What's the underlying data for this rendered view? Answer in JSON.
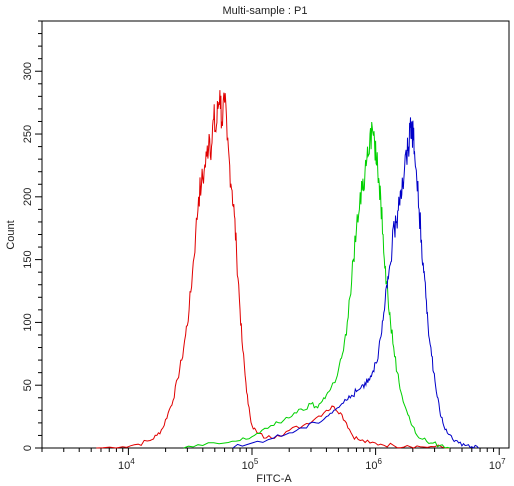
{
  "chart_data": {
    "type": "line",
    "title": "Multi-sample : P1",
    "xlabel": "FITC-A",
    "ylabel": "Count",
    "xscale": "log",
    "xlim": [
      2000,
      12000000
    ],
    "ylim": [
      0,
      340
    ],
    "grid": false,
    "legend": "none",
    "y_ticks": [
      0,
      50,
      100,
      150,
      200,
      250,
      300
    ],
    "x_ticks": [
      {
        "value": 10000,
        "base": "10",
        "exp": "4"
      },
      {
        "value": 100000,
        "base": "10",
        "exp": "5"
      },
      {
        "value": 1000000,
        "base": "10",
        "exp": "6"
      },
      {
        "value": 10000000,
        "base": "10",
        "exp": "7"
      }
    ],
    "series": [
      {
        "color": "#e00000",
        "x": [
          5500,
          9000,
          12000,
          15000,
          17000,
          19000,
          21000,
          23000,
          25000,
          27000,
          29000,
          31000,
          33000,
          35000,
          37000,
          39000,
          41000,
          43000,
          45000,
          47000,
          49000,
          51000,
          53000,
          55000,
          57000,
          60000,
          63000,
          66000,
          69000,
          72000,
          75000,
          79000,
          83000,
          88000,
          93000,
          100000,
          110000,
          130000,
          160000,
          200000,
          260000,
          330000,
          400000,
          460000,
          520000,
          580000,
          650000,
          750000,
          900000,
          1100000,
          1400000,
          1800000,
          2300000,
          3000000,
          4000000
        ],
        "y": [
          0,
          1,
          3,
          6,
          10,
          16,
          28,
          38,
          55,
          70,
          90,
          110,
          140,
          170,
          200,
          210,
          220,
          232,
          250,
          240,
          262,
          252,
          270,
          285,
          260,
          275,
          245,
          225,
          205,
          185,
          155,
          120,
          85,
          58,
          35,
          18,
          12,
          8,
          10,
          14,
          18,
          24,
          30,
          33,
          28,
          20,
          10,
          6,
          4,
          3,
          2,
          2,
          1,
          1,
          0
        ]
      },
      {
        "color": "#00d000",
        "x": [
          28000,
          40000,
          60000,
          80000,
          100000,
          120000,
          150000,
          180000,
          220000,
          260000,
          300000,
          340000,
          380000,
          420000,
          460000,
          500000,
          540000,
          580000,
          620000,
          660000,
          700000,
          740000,
          780000,
          820000,
          860000,
          900000,
          940000,
          980000,
          1020000,
          1060000,
          1100000,
          1150000,
          1200000,
          1260000,
          1320000,
          1400000,
          1500000,
          1600000,
          1750000,
          1900000,
          2100000,
          2400000,
          2800000,
          3300000,
          4000000
        ],
        "y": [
          0,
          2,
          4,
          6,
          9,
          14,
          18,
          22,
          28,
          30,
          35,
          32,
          40,
          45,
          52,
          62,
          75,
          90,
          120,
          150,
          175,
          190,
          205,
          220,
          240,
          250,
          255,
          245,
          225,
          215,
          200,
          170,
          145,
          120,
          100,
          80,
          60,
          45,
          32,
          22,
          12,
          7,
          4,
          2,
          0
        ]
      },
      {
        "color": "#0000c8",
        "x": [
          70000,
          100000,
          150000,
          200000,
          260000,
          330000,
          400000,
          460000,
          520000,
          580000,
          640000,
          700000,
          760000,
          820000,
          880000,
          940000,
          1000000,
          1060000,
          1120000,
          1180000,
          1240000,
          1300000,
          1360000,
          1420000,
          1480000,
          1540000,
          1600000,
          1660000,
          1720000,
          1780000,
          1840000,
          1900000,
          1960000,
          2020000,
          2080000,
          2150000,
          2250000,
          2350000,
          2450000,
          2550000,
          2650000,
          2800000,
          2950000,
          3100000,
          3300000,
          3500000,
          3800000,
          4200000,
          4700000,
          5300000,
          6000000,
          6800000
        ],
        "y": [
          0,
          4,
          8,
          12,
          16,
          20,
          25,
          30,
          34,
          38,
          42,
          45,
          48,
          52,
          55,
          60,
          68,
          78,
          92,
          110,
          128,
          145,
          160,
          175,
          180,
          200,
          205,
          210,
          225,
          230,
          240,
          255,
          260,
          245,
          230,
          215,
          190,
          165,
          140,
          120,
          100,
          80,
          60,
          45,
          30,
          20,
          12,
          7,
          4,
          2,
          1,
          0
        ]
      }
    ]
  }
}
